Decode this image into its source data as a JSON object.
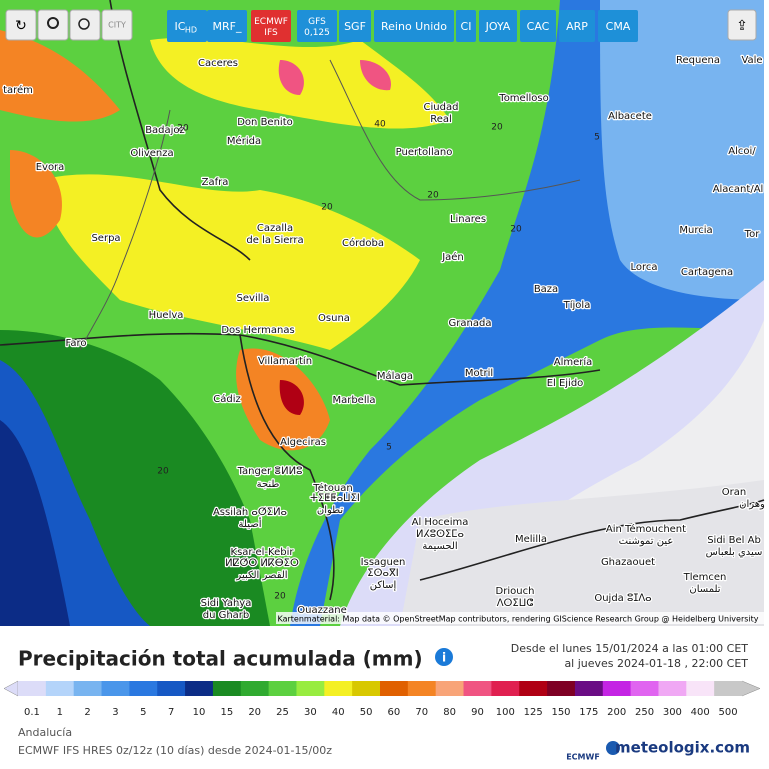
{
  "toolbar": {
    "city": "CITY",
    "buttons": [
      "IC",
      "HD",
      "MRF_",
      "ECMWF IFS",
      "GFS 0,125",
      "SGF",
      "Reino Unido",
      "CI",
      "JOYA",
      "CAC",
      "ARP",
      "CMA"
    ]
  },
  "map": {
    "labels": [
      "Caceres",
      "Requena",
      "Vale",
      "tarém",
      "Badajoz",
      "Don Benito",
      "Mérida",
      "Ciudad",
      "Real",
      "Tomelloso",
      "Albacete",
      "Alcoi/",
      "Olivenza",
      "Puertollano",
      "Evora",
      "Zafra",
      "Alacant/Al",
      "Cazalla",
      "de la Sierra",
      "Linares",
      "Murcia",
      "Tor",
      "Serpa",
      "Córdoba",
      "Jaén",
      "Lorca",
      "Cartagena",
      "Baza",
      "Tíjola",
      "Sevilla",
      "Huelva",
      "Osuna",
      "Granada",
      "Dos Hermanas",
      "Faro",
      "Villamartín",
      "Almería",
      "Málaga",
      "Motril",
      "El Ejido",
      "Marbella",
      "Cádiz",
      "Algeciras",
      "Tanger ⴻⵍⵍⵓ",
      "طنجة",
      "Tétouan",
      "ⵜⵉⵟⵟⴰⵡⵉⵏ",
      "تطوان",
      "Oran",
      "وهران",
      "Assilah ⴰⵚⵉⵍⴰ",
      "أصيلة",
      "Al Hoceima",
      "ⵍⵃⵓⵙⵉⵎⴰ",
      "الحسيمة",
      "Ain Témouchent",
      "عين تموشنت",
      "Sidi Bel Ab",
      "سيدي بلعباس",
      "Melilla",
      "Ksar-el-Kebir",
      "ⵍⵇⵚⵔ ⵍⴽⴱⵉⵔ",
      "القصر الكبير",
      "Issaguen",
      "ⵉⵙⴰⴳⵏ",
      "إساكن",
      "Ghazaouet",
      "Tlemcen",
      "تلمسان",
      "Driouch",
      "ⴷⵔⵉⵡⵛ",
      "Oujda ⵓⵊⴷⴰ",
      "Sidi Yahya",
      "du Gharb",
      "Ouazzane"
    ],
    "contours": [
      "20",
      "40",
      "20",
      "5",
      "20",
      "20",
      "20",
      "5",
      "20",
      "20"
    ],
    "attribution": "Kartenmaterial: Map data © OpenStreetMap contributors, rendering GIScience Research Group @ Heidelberg University"
  },
  "legend": {
    "title": "Precipitación total acumulada (mm)",
    "date_from": "Desde el lunes 15/01/2024 a las 01:00 CET",
    "date_to": "al jueves 2024-01-18 , 22:00 CET",
    "values": [
      0.1,
      1,
      2,
      3,
      5,
      7,
      10,
      15,
      20,
      25,
      30,
      40,
      50,
      60,
      70,
      80,
      90,
      100,
      125,
      150,
      175,
      200,
      250,
      300,
      400,
      500
    ],
    "colors": [
      "#dcdcf8",
      "#b4d4fa",
      "#78b4f0",
      "#4a96ea",
      "#2a78e0",
      "#1658c4",
      "#0c2c86",
      "#1a8a22",
      "#30aa30",
      "#5cd040",
      "#98ec40",
      "#f4f024",
      "#d8c800",
      "#e06000",
      "#f48424",
      "#f8a478",
      "#f05482",
      "#e02050",
      "#b00014",
      "#7e0024",
      "#6a0c84",
      "#c424e4",
      "#e064f0",
      "#f0a8f4",
      "#f8e4f8",
      "#c8c8c8"
    ]
  },
  "footer": {
    "region": "Andalucía",
    "model": "ECMWF IFS HRES 0z/12z (10 días) desde 2024-01-15/00z",
    "ecmwf": "ECMWF",
    "brand": "meteologix.com"
  }
}
